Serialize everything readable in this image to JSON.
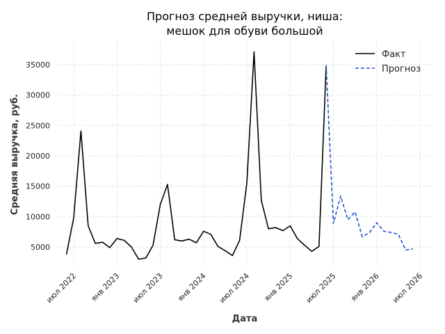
{
  "chart_data": {
    "type": "line",
    "title_line1": "Прогноз средней выручки, ниша:",
    "title_line2": "мешок для обуви большой",
    "xlabel": "Дата",
    "ylabel": "Средняя выручка, руб.",
    "ylim": [
      1800,
      39000
    ],
    "yticks": [
      5000,
      10000,
      15000,
      20000,
      25000,
      30000,
      35000
    ],
    "xticks": [
      {
        "date": "2022-07",
        "label": "июл 2022"
      },
      {
        "date": "2023-01",
        "label": "янв 2023"
      },
      {
        "date": "2023-07",
        "label": "июл 2023"
      },
      {
        "date": "2024-01",
        "label": "янв 2024"
      },
      {
        "date": "2024-07",
        "label": "июл 2024"
      },
      {
        "date": "2025-01",
        "label": "янв 2025"
      },
      {
        "date": "2025-07",
        "label": "июл 2025"
      },
      {
        "date": "2026-01",
        "label": "янв 2026"
      },
      {
        "date": "2026-07",
        "label": "июл 2026"
      }
    ],
    "grid": true,
    "legend_position": "top-right",
    "series": [
      {
        "name": "Факт",
        "color": "#000000",
        "style": "solid",
        "x": [
          "2022-06",
          "2022-07",
          "2022-08",
          "2022-09",
          "2022-10",
          "2022-11",
          "2022-12",
          "2023-01",
          "2023-02",
          "2023-03",
          "2023-04",
          "2023-05",
          "2023-06",
          "2023-07",
          "2023-08",
          "2023-09",
          "2023-10",
          "2023-11",
          "2023-12",
          "2024-01",
          "2024-02",
          "2024-03",
          "2024-04",
          "2024-05",
          "2024-06",
          "2024-07",
          "2024-08",
          "2024-09",
          "2024-10",
          "2024-11",
          "2024-12",
          "2025-01",
          "2025-02",
          "2025-03",
          "2025-04",
          "2025-05",
          "2025-06"
        ],
        "y": [
          3800,
          9800,
          24100,
          8500,
          5600,
          5800,
          4900,
          6400,
          6100,
          5000,
          3000,
          3200,
          5300,
          12000,
          15300,
          6200,
          6000,
          6300,
          5700,
          7600,
          7100,
          5100,
          4400,
          3600,
          6100,
          15500,
          37100,
          12700,
          8000,
          8200,
          7700,
          8500,
          6400,
          5300,
          4300,
          5100,
          34900
        ]
      },
      {
        "name": "Прогноз",
        "color": "#1f4fd1",
        "style": "dashed",
        "x": [
          "2025-06",
          "2025-07",
          "2025-08",
          "2025-09",
          "2025-10",
          "2025-11",
          "2025-12",
          "2026-01",
          "2026-02",
          "2026-03",
          "2026-04",
          "2026-05",
          "2026-06"
        ],
        "y": [
          34900,
          8900,
          13400,
          9500,
          10800,
          6700,
          7400,
          9000,
          7600,
          7400,
          7100,
          4500,
          4700
        ]
      }
    ]
  }
}
